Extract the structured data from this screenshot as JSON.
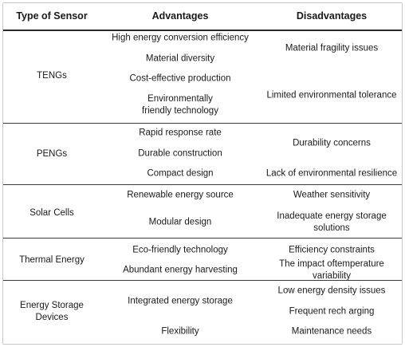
{
  "headers": [
    "Type of Sensor",
    "Advantages",
    "Disadvantages"
  ],
  "rows": [
    {
      "type": "TENGs",
      "advantages": [
        "High energy conversion efficiency",
        "Material diversity",
        "Cost-effective production",
        "Environmentally friendly technology"
      ],
      "disadvantages": [
        "Material fragility issues",
        "Limited environmental tolerance"
      ]
    },
    {
      "type": "PENGs",
      "advantages": [
        "Rapid response rate",
        "Durable construction",
        "Compact design"
      ],
      "disadvantages": [
        "Durability concerns",
        "Lack of environmental resilience"
      ]
    },
    {
      "type": "Solar Cells",
      "advantages": [
        "Renewable energy source",
        "Modular design"
      ],
      "disadvantages": [
        "Weather sensitivity",
        "Inadequate energy storage solutions"
      ]
    },
    {
      "type": "Thermal Energy",
      "advantages": [
        "Eco-friendly technology",
        "Abundant energy harvesting"
      ],
      "disadvantages": [
        "Efficiency constraints",
        "The impact oftemperature variability"
      ]
    },
    {
      "type": "Energy Storage Devices",
      "advantages": [
        "Integrated energy storage",
        "Flexibility"
      ],
      "disadvantages": [
        "Low energy density issues",
        "Frequent rech arging",
        "Maintenance needs"
      ]
    }
  ]
}
